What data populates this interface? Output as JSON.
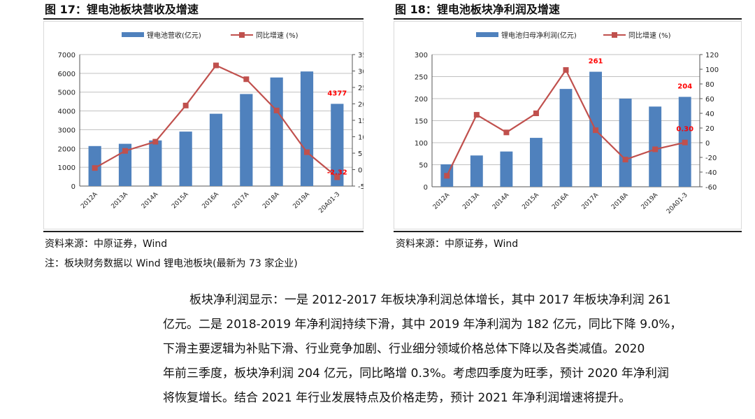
{
  "figures": [
    {
      "title": "图 17：锂电池板块营收及增速",
      "source": "资料来源：中原证券，Wind",
      "note": "注：板块财务数据以 Wind 锂电池板块(最新为 73 家企业)"
    },
    {
      "title": "图 18：锂电池板块净利润及增速",
      "source": "资料来源：中原证券，Wind"
    }
  ],
  "paragraph": {
    "lines": [
      "板块净利润显示：一是 2012-2017 年板块净利润总体增长，其中 2017 年板块净利润 261",
      "亿元。二是 2018-2019 年净利润持续下滑，其中 2019 年净利润为 182 亿元，同比下降 9.0%，",
      "下滑主要逻辑为补贴下滑、行业竞争加剧、行业细分领域价格总体下降以及各类减值。2020",
      "年前三季度，板块净利润 204 亿元，同比略增 0.3%。考虑四季度为旺季，预计 2020 年净利润",
      "将恢复增长。结合 2021 年行业发展特点及价格走势，预计 2021 年净利润增速将提升。"
    ]
  },
  "colors": {
    "bar": "#4F81BD",
    "line": "#C0504D",
    "label": "#FF0000",
    "grid": "#C0C0C0"
  },
  "chart_data": [
    {
      "type": "bar",
      "categories": [
        "2012A",
        "2013A",
        "2014A",
        "2015A",
        "2016A",
        "2017A",
        "2018A",
        "2019A",
        "20A01-3"
      ],
      "series": [
        {
          "name": "锂电池营收(亿元)",
          "type": "bar",
          "axis": "left",
          "values": [
            2130,
            2250,
            2430,
            2900,
            3850,
            4900,
            5780,
            6100,
            4377
          ]
        },
        {
          "name": "同比增速 (%)",
          "type": "line",
          "axis": "right",
          "values": [
            0.5,
            5.7,
            8.5,
            19.5,
            31.7,
            27.5,
            18.0,
            5.3,
            -2.32
          ]
        }
      ],
      "ylim_left": [
        0,
        7000
      ],
      "yticks_left": [
        0,
        1000,
        2000,
        3000,
        4000,
        5000,
        6000,
        7000
      ],
      "ylim_right": [
        -5,
        35
      ],
      "yticks_right": [
        -5,
        0,
        5,
        10,
        15,
        20,
        25,
        30,
        35
      ],
      "annotations": [
        {
          "text": "4377",
          "series": 0,
          "index": 8
        },
        {
          "text": "-2.32",
          "series": 1,
          "index": 8
        }
      ],
      "grid": true,
      "legend": "top-center"
    },
    {
      "type": "bar",
      "categories": [
        "2012A",
        "2013A",
        "2014A",
        "2015A",
        "2016A",
        "2017A",
        "2018A",
        "2019A",
        "20A01-3"
      ],
      "series": [
        {
          "name": "锂电池归母净利润(亿元)",
          "type": "bar",
          "axis": "left",
          "values": [
            51,
            71,
            80,
            111,
            222,
            261,
            200,
            182,
            204
          ]
        },
        {
          "name": "同比增速 (%)",
          "type": "line",
          "axis": "right",
          "values": [
            -45,
            38,
            14,
            40,
            99,
            17,
            -23,
            -9,
            0.3
          ]
        }
      ],
      "ylim_left": [
        0,
        300
      ],
      "yticks_left": [
        0,
        50,
        100,
        150,
        200,
        250,
        300
      ],
      "ylim_right": [
        -60,
        120
      ],
      "yticks_right": [
        -60,
        -40,
        -20,
        0,
        20,
        40,
        60,
        80,
        100,
        120
      ],
      "annotations": [
        {
          "text": "261",
          "series": 0,
          "index": 5
        },
        {
          "text": "204",
          "series": 0,
          "index": 8
        },
        {
          "text": "0.30",
          "series": 1,
          "index": 8
        }
      ],
      "grid": true,
      "legend": "top-center"
    }
  ]
}
